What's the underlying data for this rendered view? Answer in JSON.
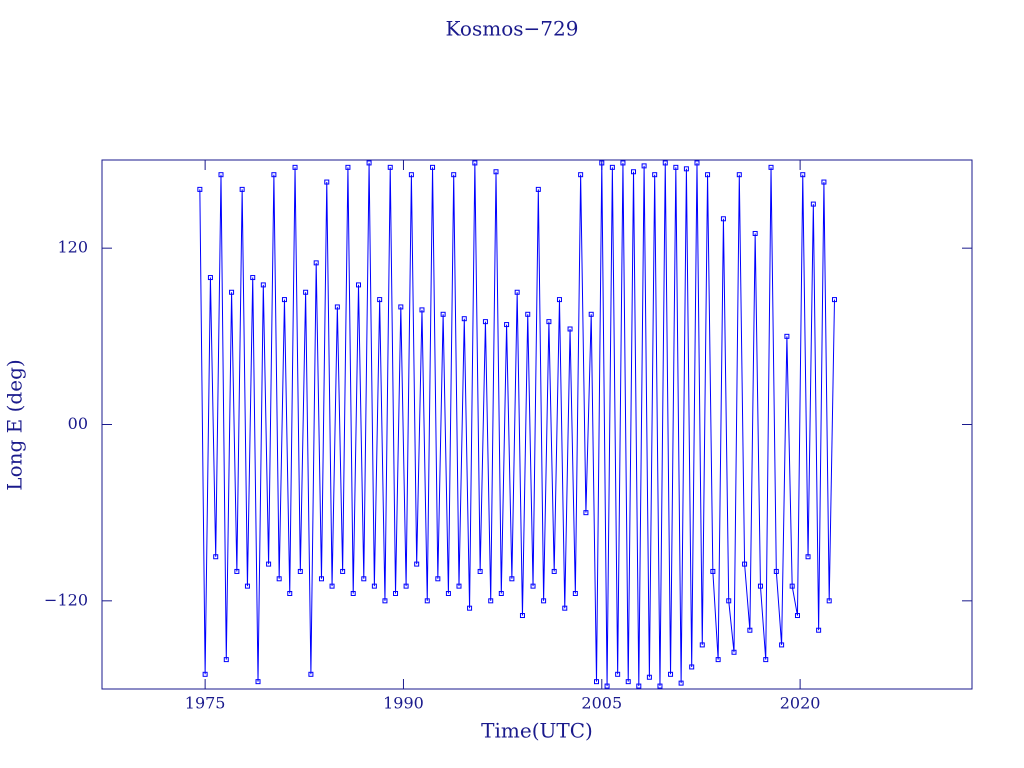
{
  "chart_data": {
    "type": "line",
    "title": "Kosmos−729",
    "xlabel": "Time(UTC)",
    "ylabel": "Long E (deg)",
    "xlim": [
      1967.2,
      2033
    ],
    "ylim": [
      -180,
      180
    ],
    "xticks": [
      1975,
      1990,
      2005,
      2020
    ],
    "yticks": [
      {
        "value": 120,
        "label": "120"
      },
      {
        "value": 0,
        "label": "00"
      },
      {
        "value": -120,
        "label": "−120"
      }
    ],
    "series": [
      {
        "color": "#0000ff",
        "x": [
          1974.6,
          1975.0,
          1975.4,
          1975.8,
          1976.2,
          1976.6,
          1977.0,
          1977.4,
          1977.8,
          1978.2,
          1978.6,
          1979.0,
          1979.4,
          1979.8,
          1980.2,
          1980.6,
          1981.0,
          1981.4,
          1981.8,
          1982.2,
          1982.6,
          1983.0,
          1983.4,
          1983.8,
          1984.2,
          1984.6,
          1985.0,
          1985.4,
          1985.8,
          1986.2,
          1986.6,
          1987.0,
          1987.4,
          1987.8,
          1988.2,
          1988.6,
          1989.0,
          1989.4,
          1989.8,
          1990.2,
          1990.6,
          1991.0,
          1991.4,
          1991.8,
          1992.2,
          1992.6,
          1993.0,
          1993.4,
          1993.8,
          1994.2,
          1994.6,
          1995.0,
          1995.4,
          1995.8,
          1996.2,
          1996.6,
          1997.0,
          1997.4,
          1997.8,
          1998.2,
          1998.6,
          1999.0,
          1999.4,
          1999.8,
          2000.2,
          2000.6,
          2001.0,
          2001.4,
          2001.8,
          2002.2,
          2002.6,
          2003.0,
          2003.4,
          2003.8,
          2004.2,
          2004.6,
          2005.0,
          2005.4,
          2005.8,
          2006.2,
          2006.6,
          2007.0,
          2007.4,
          2007.8,
          2008.2,
          2008.6,
          2009.0,
          2009.4,
          2009.8,
          2010.2,
          2010.6,
          2011.0,
          2011.4,
          2011.8,
          2012.2,
          2012.6,
          2013.0,
          2013.4,
          2013.8,
          2014.2,
          2014.6,
          2015.0,
          2015.4,
          2015.8,
          2016.2,
          2016.6,
          2017.0,
          2017.4,
          2017.8,
          2018.2,
          2018.6,
          2019.0,
          2019.4,
          2019.8,
          2020.2,
          2020.6,
          2021.0,
          2021.4,
          2021.8,
          2022.2,
          2022.6
        ],
        "values": [
          160,
          -170,
          100,
          -90,
          170,
          -160,
          90,
          -100,
          160,
          -110,
          100,
          -175,
          95,
          -95,
          170,
          -105,
          85,
          -115,
          175,
          -100,
          90,
          -170,
          110,
          -105,
          165,
          -110,
          80,
          -100,
          175,
          -115,
          95,
          -105,
          178,
          -110,
          85,
          -120,
          175,
          -115,
          80,
          -110,
          170,
          -95,
          78,
          -120,
          175,
          -105,
          75,
          -115,
          170,
          -110,
          72,
          -125,
          178,
          -100,
          70,
          -120,
          172,
          -115,
          68,
          -105,
          90,
          -130,
          75,
          -110,
          160,
          -120,
          70,
          -100,
          85,
          -125,
          65,
          -115,
          170,
          -60,
          75,
          -175,
          178,
          -178,
          175,
          -170,
          178,
          -175,
          172,
          -178,
          176,
          -172,
          170,
          -178,
          178,
          -170,
          175,
          -176,
          174,
          -165,
          178,
          -150,
          170,
          -100,
          -160,
          140,
          -120,
          -155,
          170,
          -95,
          -140,
          130,
          -110,
          -160,
          175,
          -100,
          -150,
          60,
          -110,
          -130,
          170,
          -90,
          150,
          -140,
          165,
          -120,
          85
        ]
      }
    ]
  }
}
